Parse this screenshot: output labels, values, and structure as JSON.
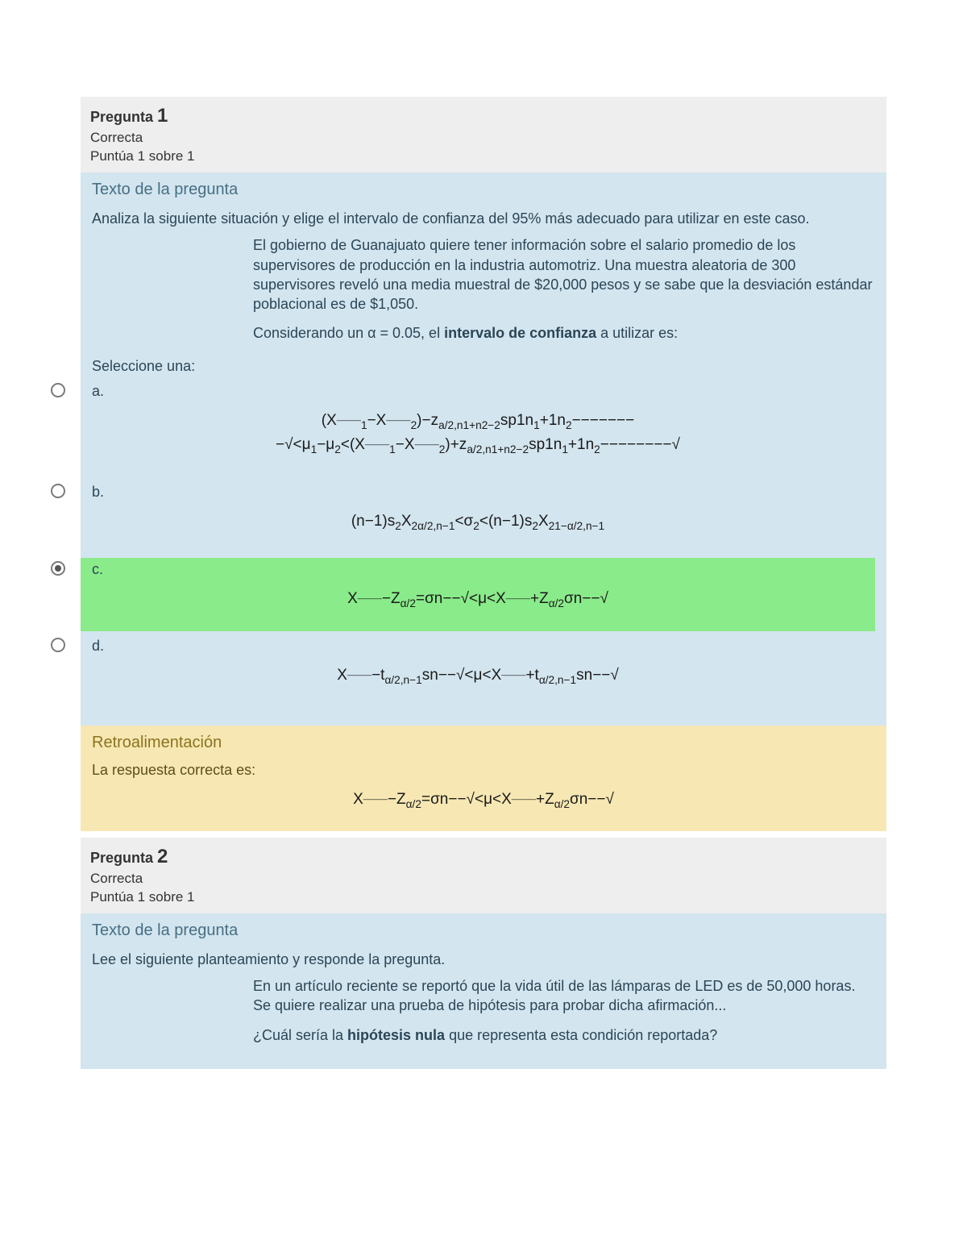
{
  "colors": {
    "header_bg": "#eeeeee",
    "body_bg": "#d3e5ef",
    "correct_bg": "#8aeb8a",
    "feedback_bg": "#f7e7b2",
    "page_bg": "#ffffff",
    "text_main": "#333333",
    "text_body": "#2b4656",
    "section_title": "#476f84",
    "feedback_title": "#8a7420"
  },
  "questions": [
    {
      "number_label": "Pregunta",
      "number": "1",
      "status": "Correcta",
      "points": "Puntúa 1 sobre 1",
      "section_title": "Texto de la pregunta",
      "intro": "Analiza la siguiente situación y elige el intervalo de confianza del 95% más adecuado para utilizar en este caso.",
      "context1": "El gobierno de Guanajuato quiere tener información sobre el salario promedio de los supervisores de producción en la industria automotriz. Una muestra aleatoria de 300 supervisores reveló una media muestral de $20,000 pesos y se sabe que la desviación estándar poblacional es de $1,050.",
      "context2_pre": "Considerando un α = 0.05, el ",
      "context2_bold": "intervalo de confianza",
      "context2_post": " a utilizar es:",
      "select_label": "Seleccione una:",
      "options": [
        {
          "letter": "a.",
          "selected": false,
          "correct": false,
          "formula_line1": "(X¯¯¯¯1−X¯¯¯¯2)−za/2,n1+n2−2sp1n1+1n2−−−−−−−",
          "formula_line2": "−√<μ1−μ2<(X¯¯¯¯1−X¯¯¯¯2)+za/2,n1+n2−2sp1n1+1n2−−−−−−−−√"
        },
        {
          "letter": "b.",
          "selected": false,
          "correct": false,
          "formula_line1": "(n−1)s2X2α/2,n−1<σ2<(n−1)s2X21−α/2,n−1",
          "formula_line2": ""
        },
        {
          "letter": "c.",
          "selected": true,
          "correct": true,
          "formula_line1": "X¯¯¯¯−Zα/2=σn−−√<μ<X¯¯¯¯+Zα/2σn−−√",
          "formula_line2": ""
        },
        {
          "letter": "d.",
          "selected": false,
          "correct": false,
          "formula_line1": "X¯¯¯¯−tα/2,n−1sn−−√<μ<X¯¯¯¯+tα/2,n−1sn−−√",
          "formula_line2": ""
        }
      ],
      "feedback": {
        "title": "Retroalimentación",
        "text": "La respuesta correcta es:",
        "formula": "X¯¯¯¯−Zα/2=σn−−√<μ<X¯¯¯¯+Zα/2σn−−√"
      }
    },
    {
      "number_label": "Pregunta",
      "number": "2",
      "status": "Correcta",
      "points": "Puntúa 1 sobre 1",
      "section_title": "Texto de la pregunta",
      "intro": "Lee el siguiente planteamiento y responde la pregunta.",
      "context1": "En un artículo reciente se reportó que la vida útil de las lámparas de LED es de 50,000 horas. Se quiere realizar una prueba de hipótesis para probar dicha afirmación...",
      "context2_pre": "¿Cuál sería la ",
      "context2_bold": "hipótesis nula",
      "context2_post": " que representa esta condición reportada?"
    }
  ]
}
